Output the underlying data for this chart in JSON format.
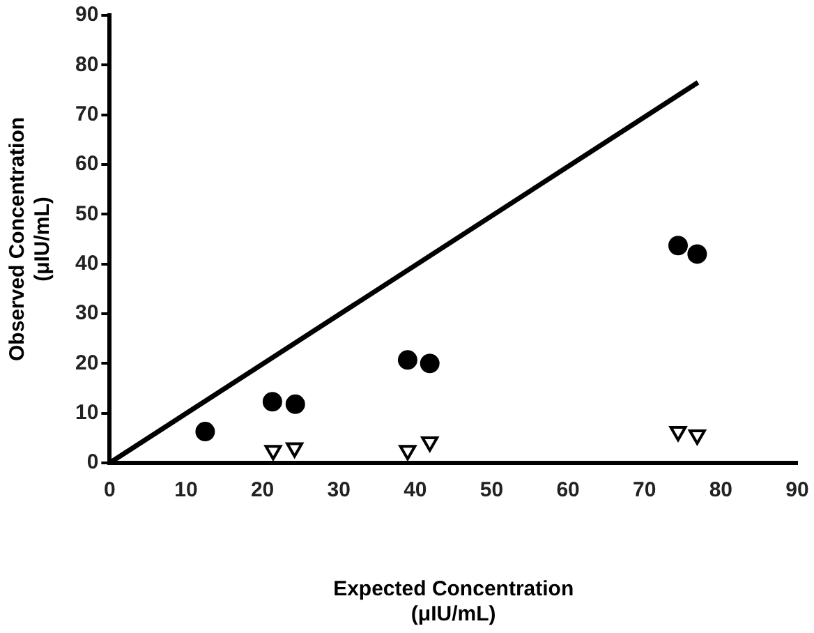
{
  "chart_data": {
    "type": "scatter",
    "xlabel": "Expected Concentration\n(μIU/mL)",
    "ylabel": "Observed Concentration\n(μIU/mL)",
    "xlim": [
      0,
      90
    ],
    "ylim": [
      0,
      90
    ],
    "xticks": [
      0,
      10,
      20,
      30,
      40,
      50,
      60,
      70,
      80,
      90
    ],
    "yticks": [
      0,
      10,
      20,
      30,
      40,
      50,
      60,
      70,
      80,
      90
    ],
    "grid": false,
    "legend": false,
    "series": [
      {
        "type": "line",
        "color": "#000000",
        "x": [
          0,
          77
        ],
        "values": [
          0,
          76.5
        ],
        "marker": "none",
        "line_style": "solid"
      },
      {
        "color": "#000000",
        "x": [
          12.5,
          21.3,
          24.3,
          39.0,
          41.9,
          74.4,
          76.9
        ],
        "values": [
          6.3,
          12.3,
          11.8,
          20.7,
          20.0,
          43.7,
          42.0
        ],
        "marker": "circle"
      },
      {
        "color": "#000000",
        "x": [
          21.4,
          24.2,
          39.0,
          41.9,
          74.4,
          76.9
        ],
        "values": [
          2.5,
          3.0,
          2.5,
          4.2,
          6.3,
          5.6
        ],
        "marker": "triangle"
      }
    ]
  }
}
